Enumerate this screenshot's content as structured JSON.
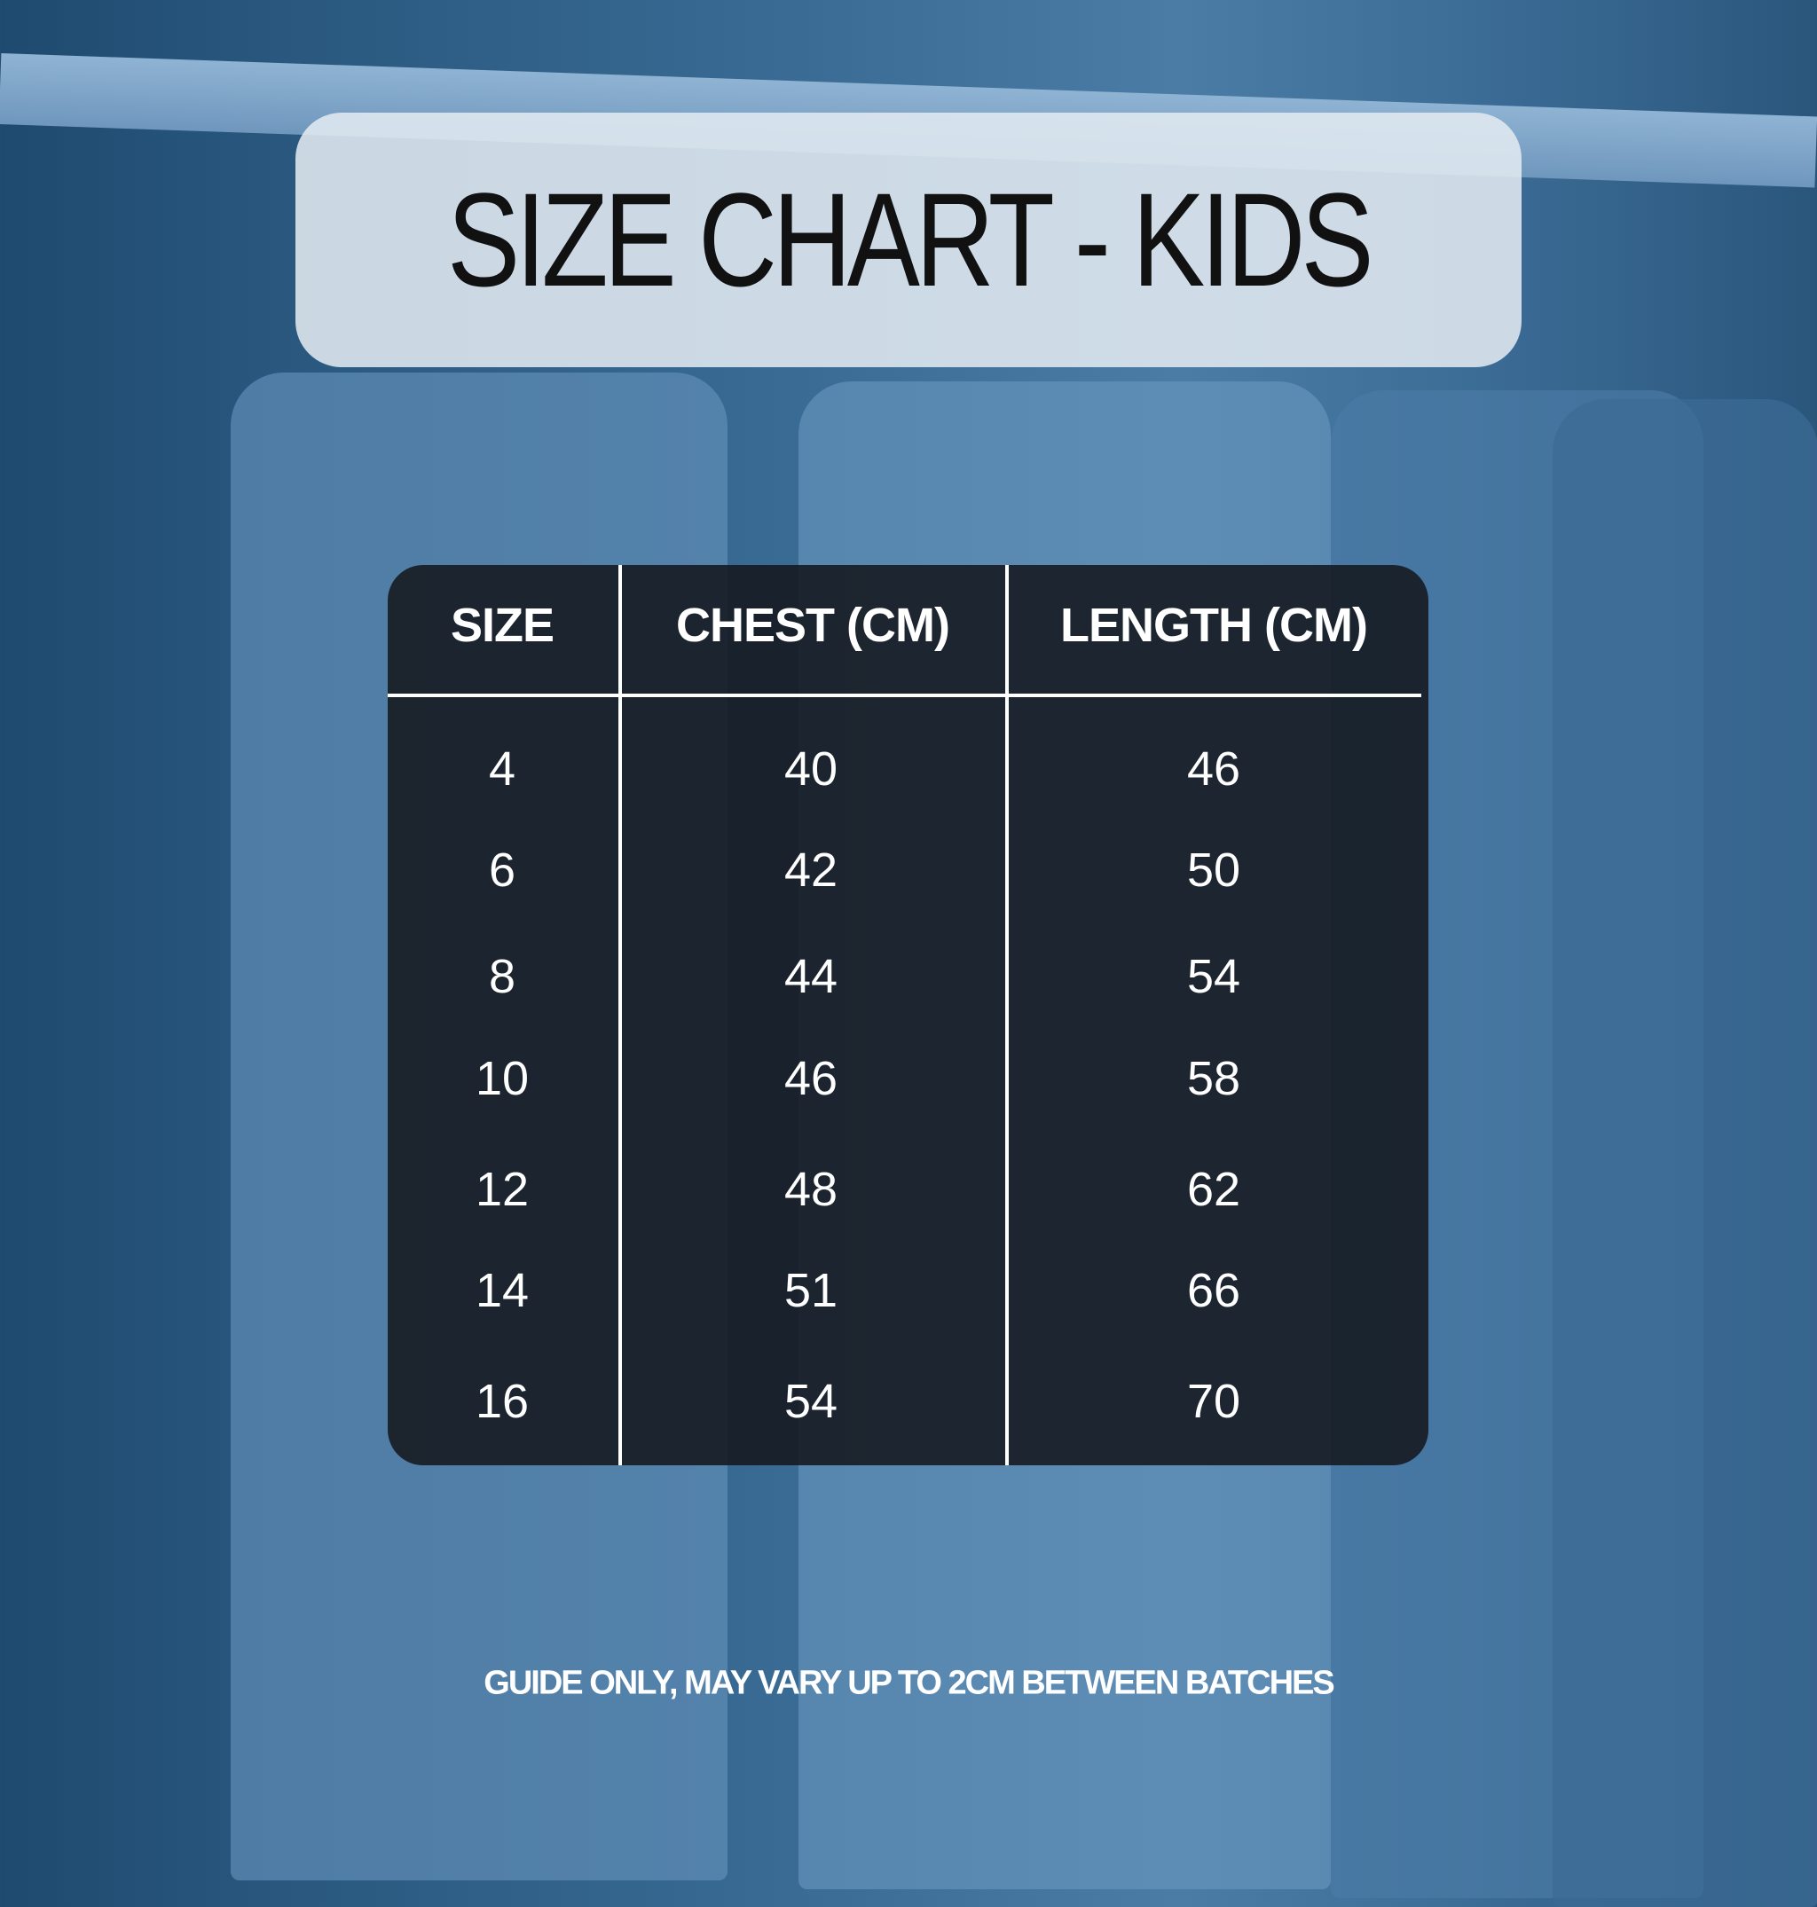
{
  "title": "SIZE CHART - KIDS",
  "table": {
    "headers": [
      "SIZE",
      "CHEST (CM)",
      "LENGTH (CM)"
    ],
    "rows": [
      [
        "4",
        "40",
        "46"
      ],
      [
        "6",
        "42",
        "50"
      ],
      [
        "8",
        "44",
        "54"
      ],
      [
        "10",
        "46",
        "58"
      ],
      [
        "12",
        "48",
        "62"
      ],
      [
        "14",
        "51",
        "66"
      ],
      [
        "16",
        "54",
        "70"
      ]
    ]
  },
  "footer": "GUIDE ONLY, MAY VARY UP TO 2CM BETWEEN BATCHES",
  "colors": {
    "background": "#2c5b82",
    "title_box": "#e1e9f0",
    "table_bg": "#14181e",
    "text": "#ffffff"
  }
}
